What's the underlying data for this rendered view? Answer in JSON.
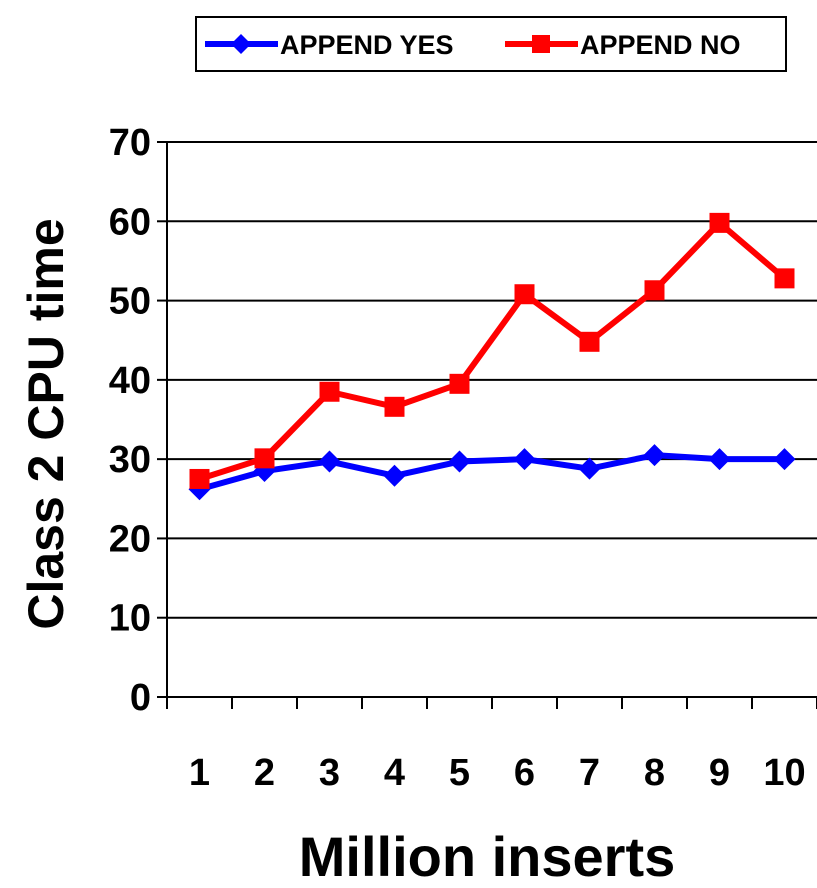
{
  "chart_data": {
    "type": "line",
    "title": "",
    "xlabel": "Million inserts",
    "ylabel": "Class 2 CPU time",
    "categories": [
      "1",
      "2",
      "3",
      "4",
      "5",
      "6",
      "7",
      "8",
      "9",
      "10"
    ],
    "ylim": [
      0,
      70
    ],
    "yticks": [
      "0",
      "10",
      "20",
      "30",
      "40",
      "50",
      "60",
      "70"
    ],
    "grid": "horizontal",
    "legend_position": "top",
    "series": [
      {
        "name": "APPEND YES",
        "color": "#0000ff",
        "marker": "diamond",
        "values": [
          26.2,
          28.5,
          29.7,
          27.9,
          29.7,
          30.0,
          28.8,
          30.5,
          30.0,
          30.0
        ]
      },
      {
        "name": "APPEND NO",
        "color": "#ff0000",
        "marker": "square",
        "values": [
          27.5,
          30.1,
          38.5,
          36.6,
          39.5,
          50.8,
          44.8,
          51.3,
          59.8,
          52.8
        ]
      }
    ]
  }
}
